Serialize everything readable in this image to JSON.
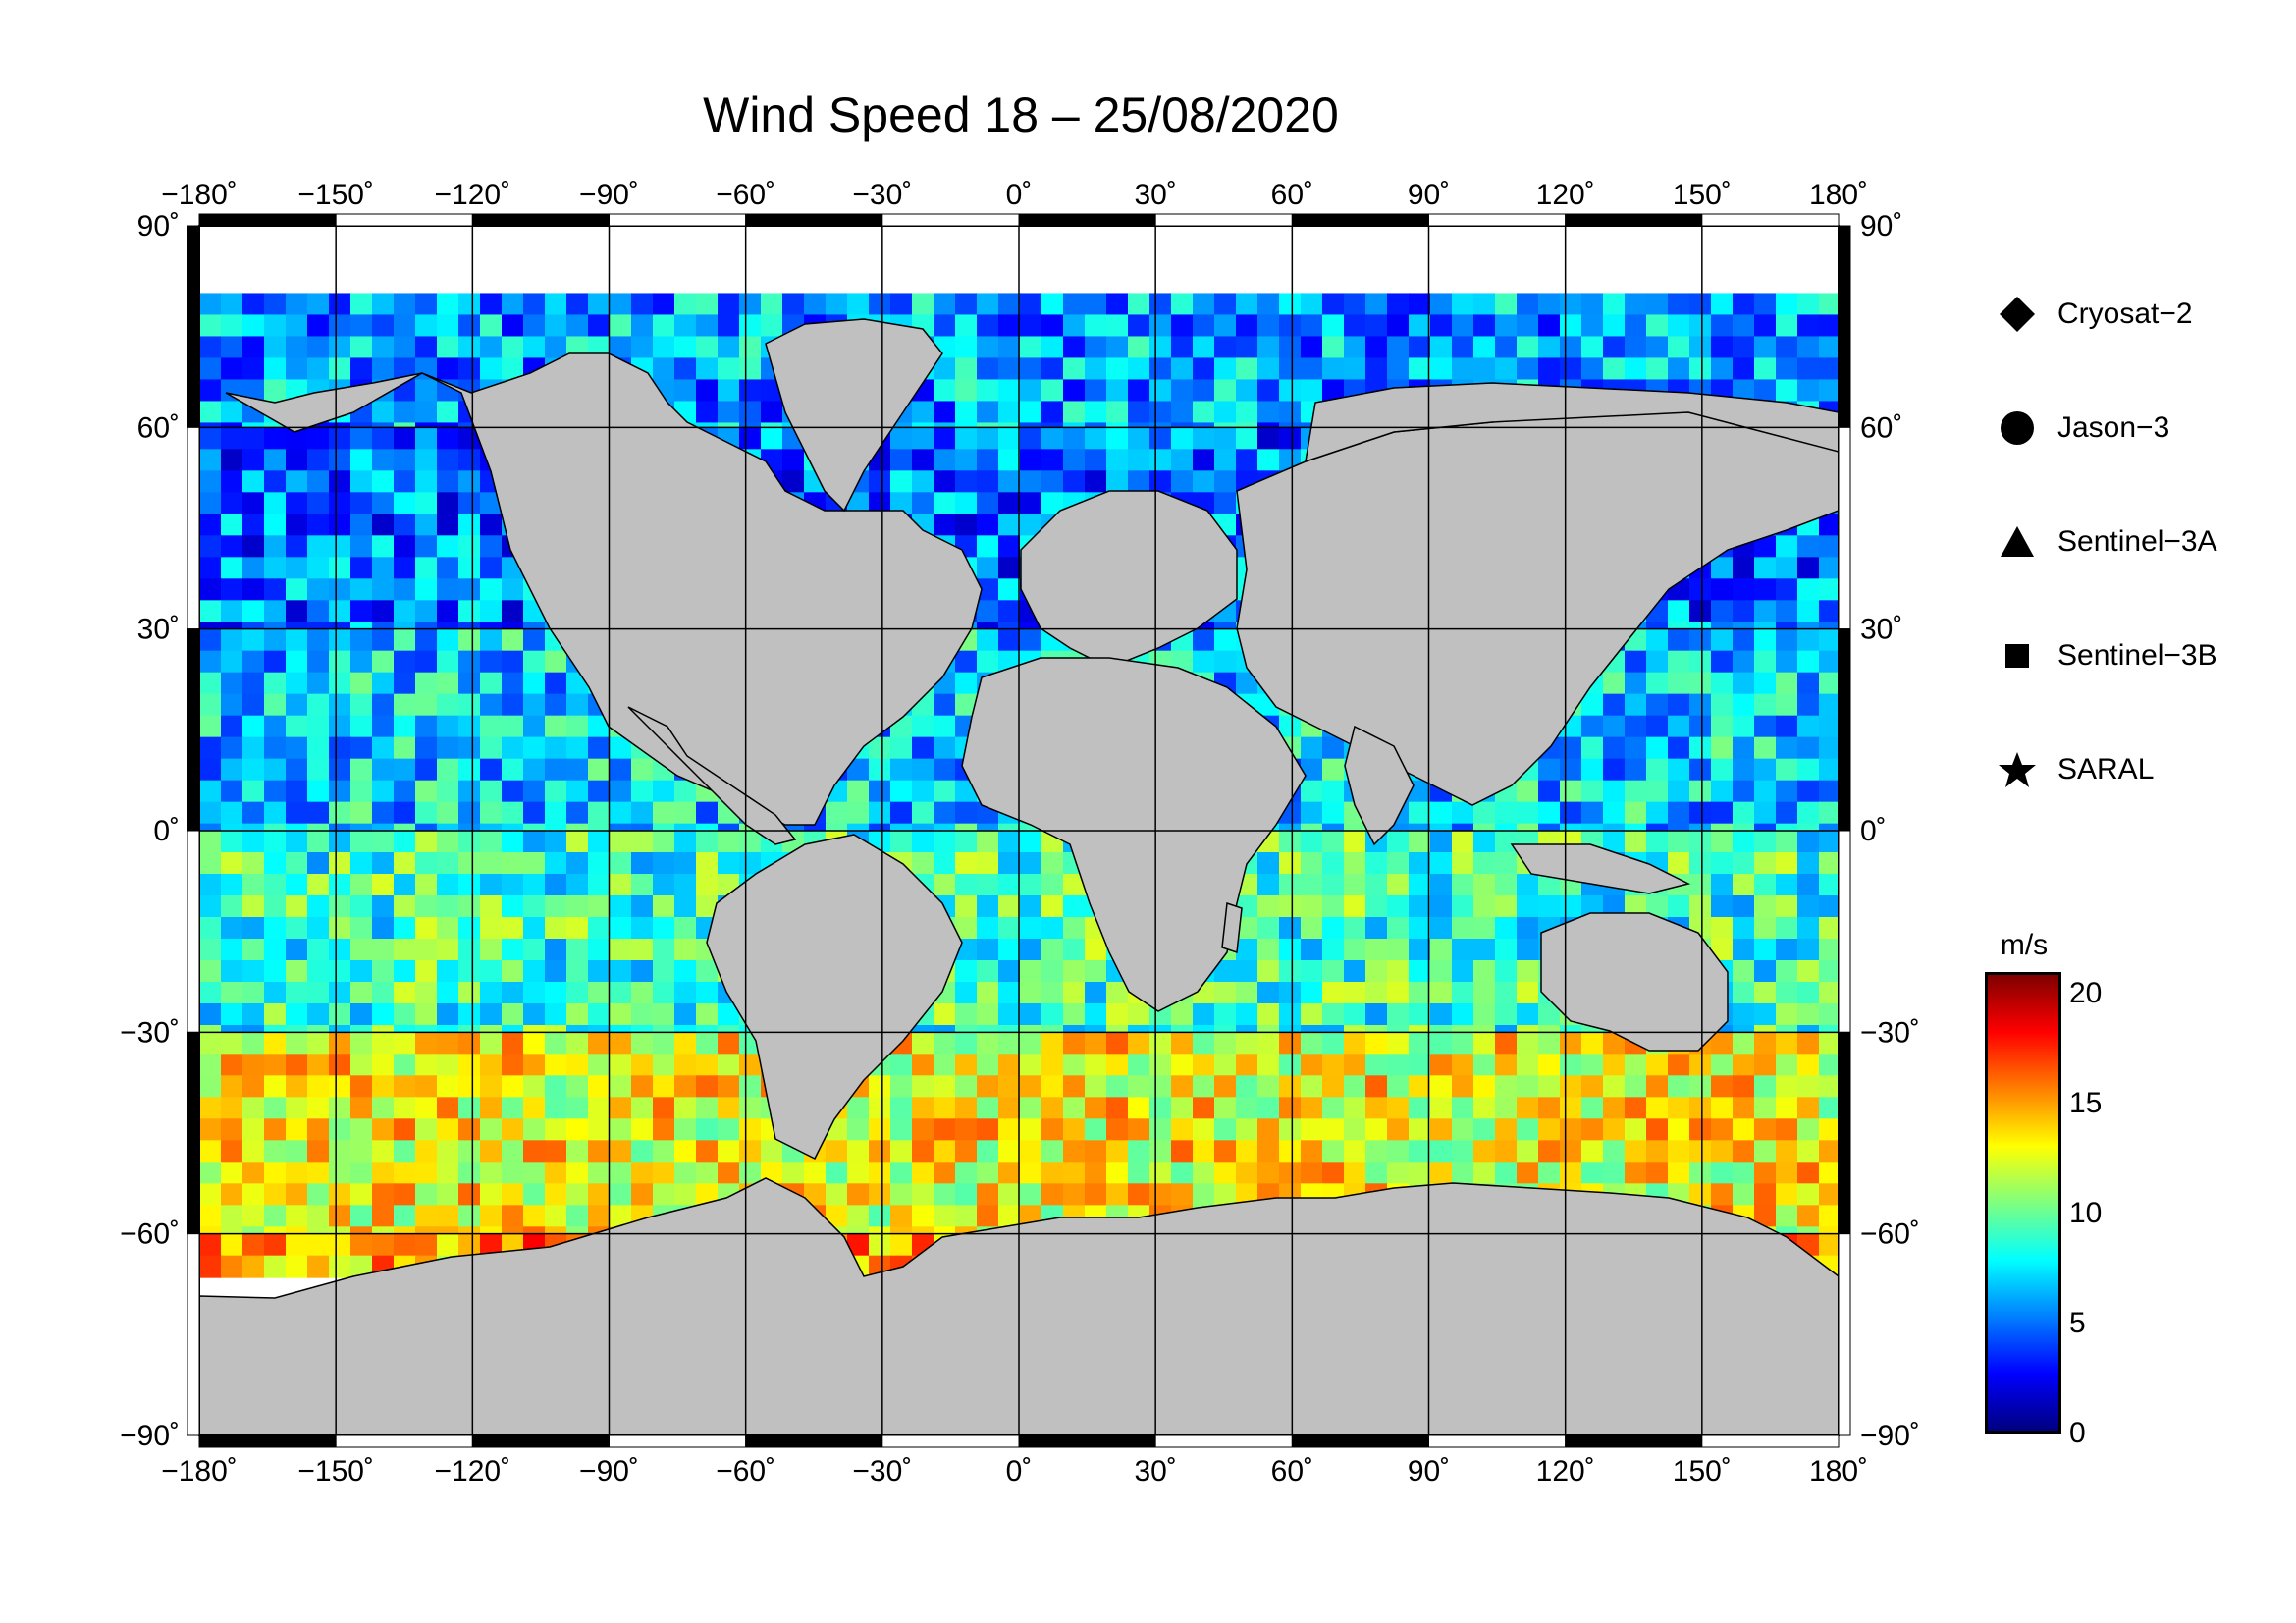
{
  "title": "Wind Speed 18 – 25/08/2020",
  "map": {
    "projection": "equirectangular",
    "lon_range": [
      -180,
      180
    ],
    "lat_range": [
      -90,
      90
    ],
    "lon_tick_labels": [
      "−180˚",
      "−150˚",
      "−120˚",
      "−90˚",
      "−60˚",
      "−30˚",
      "0˚",
      "30˚",
      "60˚",
      "90˚",
      "120˚",
      "150˚",
      "180˚"
    ],
    "lat_tick_labels": [
      "90˚",
      "60˚",
      "30˚",
      "0˚",
      "−30˚",
      "−60˚",
      "−90˚"
    ],
    "land_color": "#c0c0c0",
    "no_data_color": "#ffffff",
    "grid": true
  },
  "legend": {
    "items": [
      {
        "label": "Cryosat−2",
        "symbol": "diamond-icon"
      },
      {
        "label": "Jason−3",
        "symbol": "circle-icon"
      },
      {
        "label": "Sentinel−3A",
        "symbol": "triangle-icon"
      },
      {
        "label": "Sentinel−3B",
        "symbol": "square-icon"
      },
      {
        "label": "SARAL",
        "symbol": "star-icon"
      }
    ]
  },
  "colorbar": {
    "unit": "m/s",
    "min": 0,
    "max": 21,
    "tick_labels": [
      "20",
      "15",
      "10",
      "5",
      "0"
    ],
    "tick_values": [
      20,
      15,
      10,
      5,
      0
    ],
    "colormap": "jet",
    "colors": [
      "#00007f",
      "#0000ff",
      "#007fff",
      "#00ffff",
      "#7fff7f",
      "#ffff00",
      "#ff7f00",
      "#ff0000",
      "#7f0000"
    ]
  },
  "chart_data": {
    "type": "heatmap",
    "title": "Wind Speed 18 – 25/08/2020",
    "variable": "Wind Speed",
    "unit": "m/s",
    "lat_band_summary": [
      {
        "lat_range": [
          60,
          80
        ],
        "typical_speed": 6
      },
      {
        "lat_range": [
          30,
          60
        ],
        "typical_speed": 5
      },
      {
        "lat_range": [
          0,
          30
        ],
        "typical_speed": 7
      },
      {
        "lat_range": [
          -30,
          0
        ],
        "typical_speed": 9
      },
      {
        "lat_range": [
          -60,
          -30
        ],
        "typical_speed": 13
      },
      {
        "lat_range": [
          -65,
          -60
        ],
        "typical_speed": 15
      }
    ]
  }
}
